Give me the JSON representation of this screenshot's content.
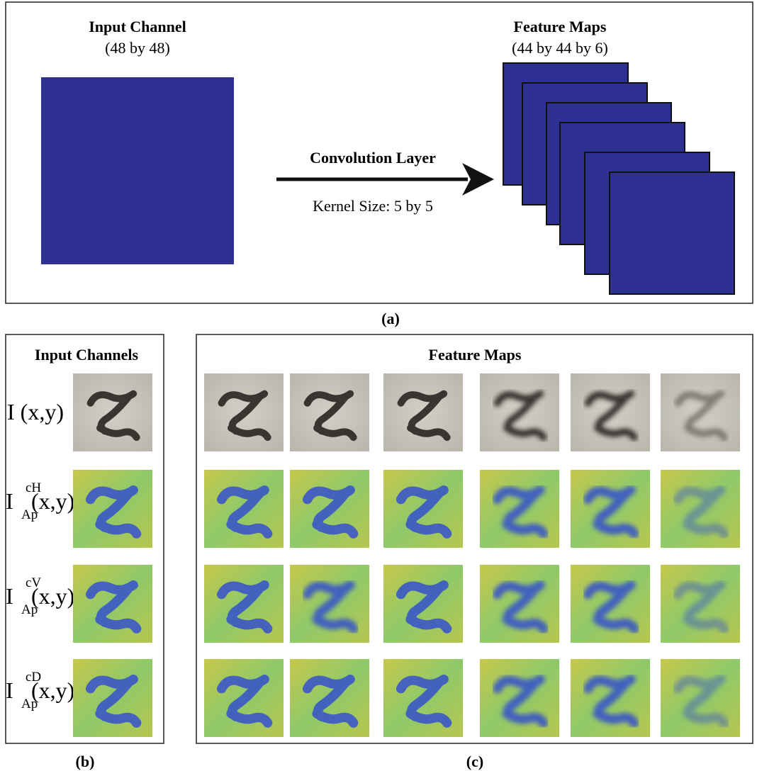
{
  "panel_a": {
    "input_title": "Input Channel",
    "input_size": "(48 by 48)",
    "layer_title": "Convolution Layer",
    "kernel": "Kernel Size: 5 by 5",
    "output_title": "Feature Maps",
    "output_size": "(44 by 44 by 6)",
    "caption": "(a)"
  },
  "panel_b": {
    "title": "Input Channels",
    "caption": "(b)",
    "rows": [
      {
        "base": "I (x,y)"
      },
      {
        "base": "I",
        "sup": "cH",
        "sub": "Ap",
        "arg": "(x,y)"
      },
      {
        "base": "I",
        "sup": "cV",
        "sub": "Ap",
        "arg": "(x,y)"
      },
      {
        "base": "I",
        "sup": "cD",
        "sub": "Ap",
        "arg": "(x,y)"
      }
    ]
  },
  "panel_c": {
    "title": "Feature Maps",
    "caption": "(c)"
  }
}
